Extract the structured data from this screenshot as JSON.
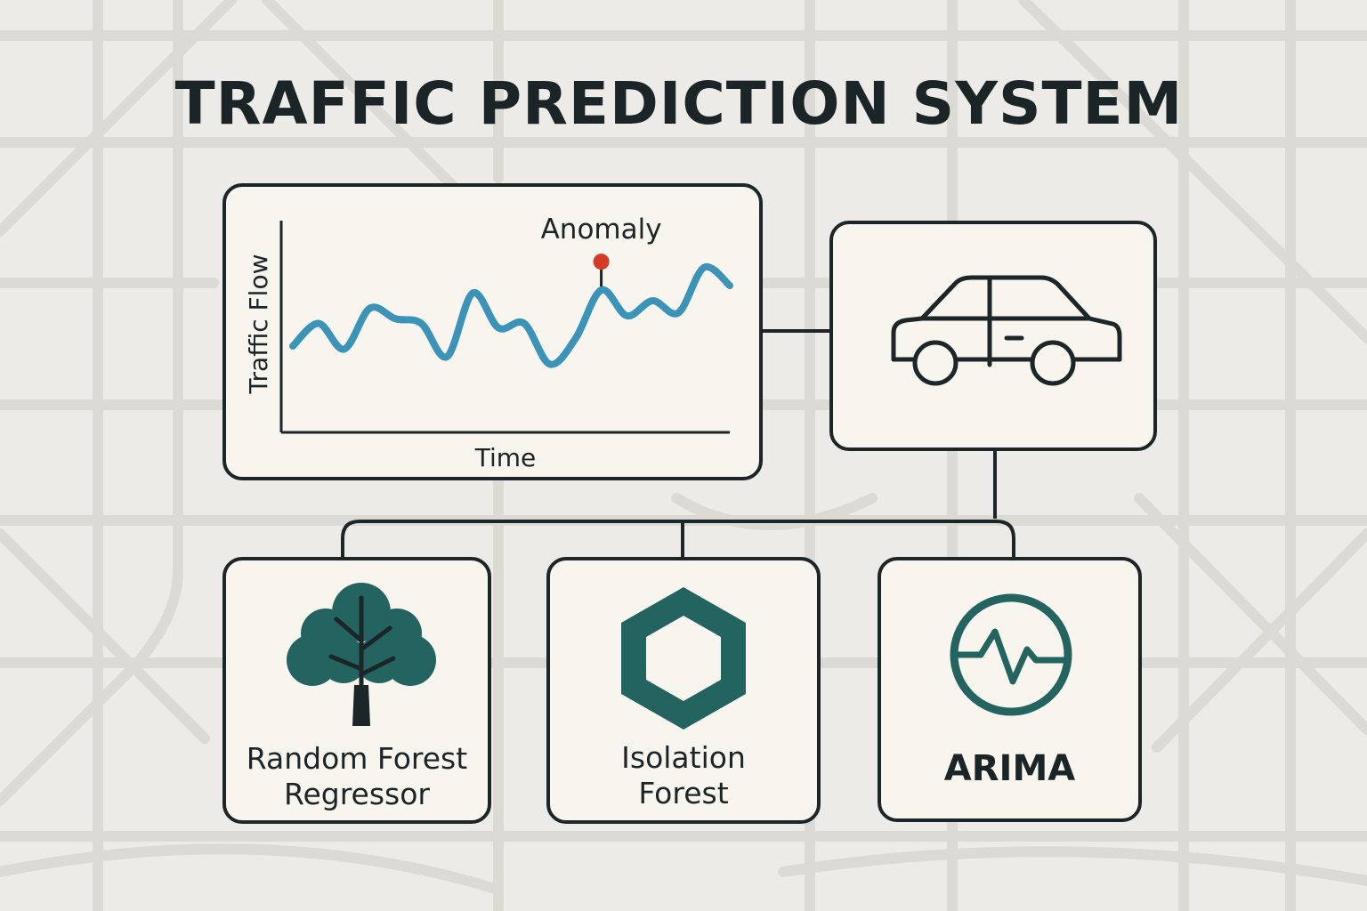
{
  "title": "TRAFFIC PREDICTION SYSTEM",
  "colors": {
    "background": "#ecebe7",
    "map_lines": "#d9d8d3",
    "box_fill": "#f8f5ee",
    "outline": "#1c2628",
    "chart_line": "#3b93b8",
    "anomaly": "#d63a24",
    "accent": "#236460"
  },
  "chart": {
    "ylabel": "Traffic Flow",
    "xlabel": "Time",
    "annotation": "Anomaly"
  },
  "chart_data": {
    "type": "line",
    "title": "",
    "xlabel": "Time",
    "ylabel": "Traffic Flow",
    "series": [
      {
        "values": [
          0.3,
          0.45,
          0.28,
          0.55,
          0.48,
          0.45,
          0.23,
          0.65,
          0.42,
          0.45,
          0.18,
          0.35,
          0.67,
          0.5,
          0.6,
          0.52,
          0.82,
          0.7
        ]
      }
    ],
    "anomaly_index": 12
  },
  "vehicle": {
    "icon": "car-icon"
  },
  "models": [
    {
      "icon": "tree-icon",
      "lines": [
        "Random Forest",
        "Regressor"
      ]
    },
    {
      "icon": "hexagon-icon",
      "lines": [
        "Isolation",
        "Forest"
      ]
    },
    {
      "icon": "signal-circle-icon",
      "lines": [
        "ARIMA"
      ]
    }
  ]
}
